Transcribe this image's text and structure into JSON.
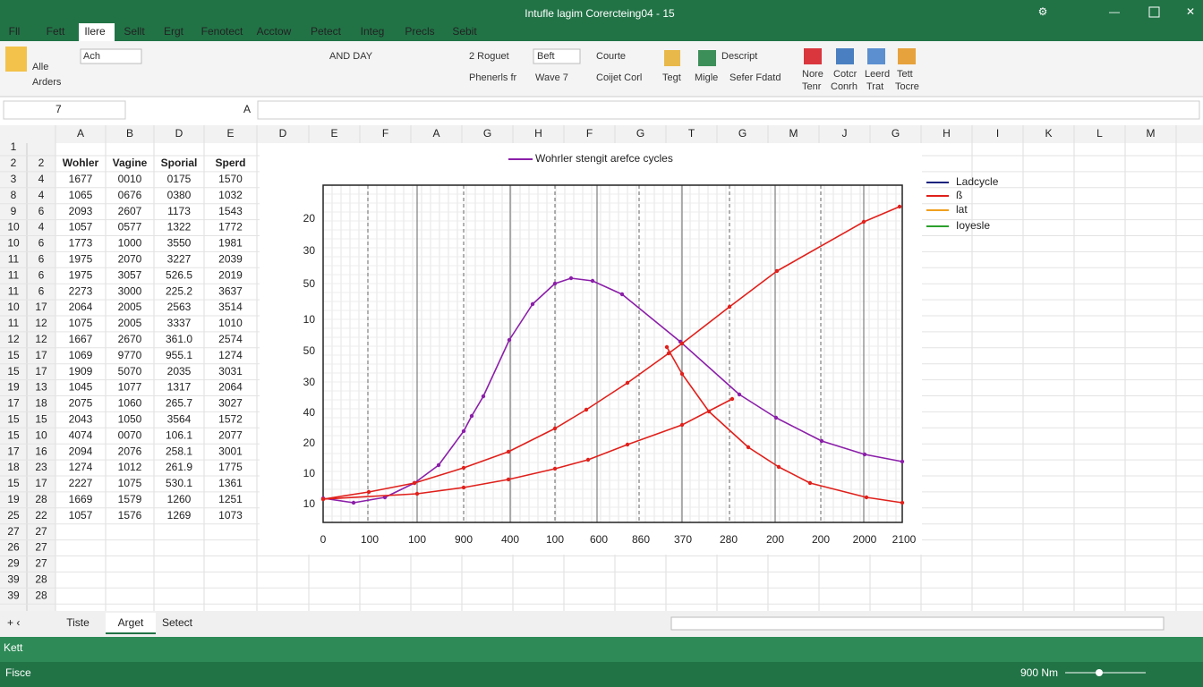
{
  "window": {
    "title": "Intufle lagim Corercteing04 - 15"
  },
  "menu": [
    "Fll",
    "Fett",
    "Ilere",
    "Sellt",
    "Ergt",
    "Fenotect",
    "Acctow",
    "Petect",
    "Integ",
    "Precls",
    "Sebit"
  ],
  "ribbon": [
    "Alle",
    "Arders",
    "Ach",
    "AND DAY",
    "2 Roguet",
    "Phenerls fr",
    "Beft",
    "Courte",
    "Descript",
    "Wave 7",
    "Coijet Corl",
    "Tegt",
    "Migle",
    "Sefer Fdatd",
    "Nore",
    "Tenr",
    "Cotcr",
    "Conrh",
    "Leerd",
    "Trat",
    "Tett",
    "Tocre"
  ],
  "name_box": "7",
  "formula_label": "A",
  "columns": [
    "A",
    "B",
    "D",
    "E",
    "D",
    "E",
    "F",
    "A",
    "G",
    "H",
    "F",
    "G",
    "T",
    "G",
    "M",
    "J",
    "G",
    "H",
    "I",
    "K",
    "L",
    "M"
  ],
  "rows": [
    {
      "n": "1"
    },
    {
      "n": "2",
      "m": "2",
      "cells": [
        "Wohler",
        "Vagine",
        "Sporial",
        "Sperd"
      ]
    },
    {
      "n": "3",
      "m": "4",
      "cells": [
        "1677",
        "0010",
        "0175",
        "1570"
      ]
    },
    {
      "n": "8",
      "m": "4",
      "cells": [
        "1065",
        "0676",
        "0380",
        "1032"
      ]
    },
    {
      "n": "9",
      "m": "6",
      "cells": [
        "2093",
        "2607",
        "1173",
        "1543"
      ]
    },
    {
      "n": "10",
      "m": "4",
      "cells": [
        "1057",
        "0577",
        "1322",
        "1772"
      ]
    },
    {
      "n": "10",
      "m": "6",
      "cells": [
        "1773",
        "1000",
        "3550",
        "1981"
      ]
    },
    {
      "n": "11",
      "m": "6",
      "cells": [
        "1975",
        "2070",
        "3227",
        "2039"
      ]
    },
    {
      "n": "11",
      "m": "6",
      "cells": [
        "1975",
        "3057",
        "526.5",
        "2019"
      ]
    },
    {
      "n": "11",
      "m": "6",
      "cells": [
        "2273",
        "3000",
        "225.2",
        "3637"
      ]
    },
    {
      "n": "10",
      "m": "17",
      "cells": [
        "2064",
        "2005",
        "2563",
        "3514"
      ]
    },
    {
      "n": "11",
      "m": "12",
      "cells": [
        "1075",
        "2005",
        "3337",
        "1010"
      ]
    },
    {
      "n": "12",
      "m": "12",
      "cells": [
        "1667",
        "2670",
        "361.0",
        "2574"
      ]
    },
    {
      "n": "15",
      "m": "17",
      "cells": [
        "1069",
        "9770",
        "955.1",
        "1274"
      ]
    },
    {
      "n": "15",
      "m": "17",
      "cells": [
        "1909",
        "5070",
        "2035",
        "3031"
      ]
    },
    {
      "n": "19",
      "m": "13",
      "cells": [
        "1045",
        "1077",
        "1317",
        "2064"
      ]
    },
    {
      "n": "17",
      "m": "18",
      "cells": [
        "2075",
        "1060",
        "265.7",
        "3027"
      ]
    },
    {
      "n": "15",
      "m": "15",
      "cells": [
        "2043",
        "1050",
        "3564",
        "1572"
      ]
    },
    {
      "n": "15",
      "m": "10",
      "cells": [
        "4074",
        "0070",
        "106.1",
        "2077"
      ]
    },
    {
      "n": "17",
      "m": "16",
      "cells": [
        "2094",
        "2076",
        "258.1",
        "3001"
      ]
    },
    {
      "n": "18",
      "m": "23",
      "cells": [
        "1274",
        "1012",
        "261.9",
        "1775"
      ]
    },
    {
      "n": "15",
      "m": "17",
      "cells": [
        "2227",
        "1075",
        "530.1",
        "1361"
      ]
    },
    {
      "n": "19",
      "m": "28",
      "cells": [
        "1669",
        "1579",
        "1260",
        "1251"
      ]
    },
    {
      "n": "25",
      "m": "22",
      "cells": [
        "1057",
        "1576",
        "1269",
        "1073"
      ]
    },
    {
      "n": "27",
      "m": "27"
    },
    {
      "n": "26",
      "m": "27"
    },
    {
      "n": "29",
      "m": "27"
    },
    {
      "n": "39",
      "m": "28"
    },
    {
      "n": "39",
      "m": "28"
    }
  ],
  "chart": {
    "title": "Wohrler stengit arefce cycles",
    "y_axis_labels": [
      "20",
      "30",
      "50",
      "10",
      "50",
      "30",
      "40",
      "20",
      "10",
      "10"
    ],
    "x_axis_labels": [
      "0",
      "100",
      "100",
      "900",
      "400",
      "100",
      "600",
      "860",
      "370",
      "280",
      "200",
      "200",
      "2000",
      "2100"
    ],
    "legend": [
      "Ladcycle",
      "ß",
      "lat",
      "Ioyesle"
    ]
  },
  "sheets": [
    "Tiste",
    "Arget",
    "Setect"
  ],
  "status": {
    "mode": "Kett",
    "ready": "Fisce",
    "zoom": "900 Nm"
  }
}
